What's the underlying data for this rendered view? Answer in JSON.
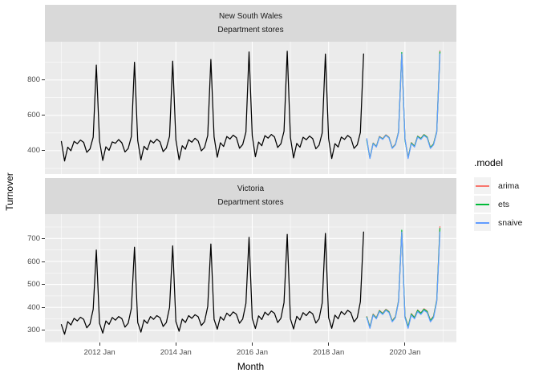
{
  "figure": {
    "y_axis_title": "Turnover",
    "x_axis_title": "Month",
    "colors": {
      "panel_bg": "#EBEBEB",
      "strip_bg": "#D9D9D9",
      "grid": "#FFFFFF",
      "tick": "#333333",
      "tick_label": "#4D4D4D",
      "actual": "#000000",
      "arima": "#F8766D",
      "ets": "#00BA38",
      "snaive": "#619CFF",
      "legend_key_bg": "#F2F2F2"
    },
    "legend": {
      "title": ".model",
      "items": [
        {
          "label": "arima",
          "color": "#F8766D"
        },
        {
          "label": "ets",
          "color": "#00BA38"
        },
        {
          "label": "snaive",
          "color": "#619CFF"
        }
      ]
    }
  },
  "x_axis": {
    "title": "Month",
    "unit": "month",
    "start": "2011 Jan",
    "end": "2020 Dec",
    "months_total": 120,
    "major_tick_month_index": [
      12,
      36,
      60,
      84,
      108
    ],
    "major_tick_labels": [
      "2012 Jan",
      "2014 Jan",
      "2016 Jan",
      "2018 Jan",
      "2020 Jan"
    ],
    "minor_gridline_month_index": [
      0,
      24,
      48,
      72,
      96,
      120
    ]
  },
  "chart_data": [
    {
      "type": "line",
      "facet_row_label": "New South Wales",
      "facet_industry_label": "Department stores",
      "ylabel": "Turnover",
      "ylim": [
        268,
        1016
      ],
      "yticks": [
        400,
        600,
        800
      ],
      "yminor": [
        300,
        500,
        700,
        900
      ],
      "grid": true,
      "series": [
        {
          "name": "actual",
          "color": "#000000",
          "start_index": 0,
          "values": [
            452,
            342,
            420,
            400,
            453,
            440,
            460,
            447,
            391,
            410,
            476,
            884,
            455,
            345,
            422,
            402,
            450,
            442,
            463,
            445,
            393,
            412,
            480,
            900,
            458,
            348,
            425,
            405,
            458,
            444,
            465,
            450,
            395,
            415,
            482,
            906,
            461,
            349,
            428,
            408,
            462,
            448,
            470,
            455,
            399,
            418,
            486,
            916,
            479,
            363,
            445,
            424,
            480,
            466,
            488,
            474,
            414,
            435,
            505,
            958,
            484,
            366,
            449,
            428,
            485,
            471,
            492,
            478,
            418,
            439,
            510,
            962,
            475,
            359,
            441,
            420,
            476,
            462,
            483,
            469,
            411,
            431,
            500,
            946,
            468,
            356,
            440,
            421,
            477,
            464,
            486,
            472,
            413,
            433,
            503,
            947
          ]
        },
        {
          "name": "arima",
          "color": "#F8766D",
          "start_index": 96,
          "values": [
            462,
            360,
            444,
            425,
            481,
            468,
            490,
            476,
            417,
            437,
            507,
            950,
            465,
            362,
            446,
            427,
            483,
            470,
            492,
            478,
            419,
            439,
            509,
            965
          ]
        },
        {
          "name": "ets",
          "color": "#00BA38",
          "start_index": 96,
          "values": [
            459,
            358,
            442,
            423,
            479,
            466,
            488,
            474,
            415,
            435,
            505,
            955,
            461,
            360,
            444,
            425,
            481,
            468,
            490,
            476,
            417,
            437,
            507,
            958
          ]
        },
        {
          "name": "snaive",
          "color": "#619CFF",
          "start_index": 96,
          "values": [
            468,
            356,
            440,
            421,
            477,
            464,
            486,
            472,
            413,
            433,
            503,
            947,
            468,
            356,
            440,
            421,
            477,
            464,
            486,
            472,
            413,
            433,
            503,
            947
          ]
        }
      ]
    },
    {
      "type": "line",
      "facet_row_label": "Victoria",
      "facet_industry_label": "Department stores",
      "ylabel": "Turnover",
      "ylim": [
        247,
        806
      ],
      "yticks": [
        300,
        400,
        500,
        600,
        700
      ],
      "yminor": [
        250,
        350,
        450,
        550,
        650,
        750
      ],
      "grid": true,
      "series": [
        {
          "name": "actual",
          "color": "#000000",
          "start_index": 0,
          "values": [
            325,
            283,
            338,
            323,
            352,
            341,
            357,
            348,
            311,
            328,
            392,
            650,
            330,
            288,
            341,
            326,
            356,
            344,
            360,
            351,
            314,
            331,
            396,
            662,
            334,
            292,
            345,
            330,
            360,
            348,
            364,
            355,
            317,
            334,
            400,
            668,
            338,
            296,
            349,
            334,
            364,
            352,
            368,
            359,
            321,
            338,
            404,
            676,
            348,
            305,
            359,
            344,
            375,
            362,
            380,
            370,
            331,
            349,
            417,
            705,
            352,
            308,
            363,
            347,
            379,
            366,
            384,
            374,
            334,
            352,
            421,
            718,
            350,
            306,
            361,
            345,
            377,
            364,
            382,
            372,
            332,
            350,
            419,
            722,
            355,
            309,
            366,
            350,
            382,
            369,
            387,
            377,
            337,
            355,
            424,
            728
          ]
        },
        {
          "name": "arima",
          "color": "#F8766D",
          "start_index": 96,
          "values": [
            360,
            315,
            371,
            355,
            387,
            374,
            392,
            382,
            342,
            360,
            429,
            732,
            362,
            317,
            373,
            357,
            389,
            376,
            394,
            384,
            344,
            362,
            431,
            752
          ]
        },
        {
          "name": "ets",
          "color": "#00BA38",
          "start_index": 96,
          "values": [
            358,
            313,
            369,
            353,
            385,
            372,
            390,
            380,
            340,
            358,
            427,
            736,
            360,
            315,
            371,
            355,
            387,
            374,
            392,
            382,
            342,
            360,
            429,
            744
          ]
        },
        {
          "name": "snaive",
          "color": "#619CFF",
          "start_index": 96,
          "values": [
            355,
            309,
            366,
            350,
            382,
            369,
            387,
            377,
            337,
            355,
            424,
            728,
            355,
            309,
            366,
            350,
            382,
            369,
            387,
            377,
            337,
            355,
            424,
            728
          ]
        }
      ]
    }
  ]
}
